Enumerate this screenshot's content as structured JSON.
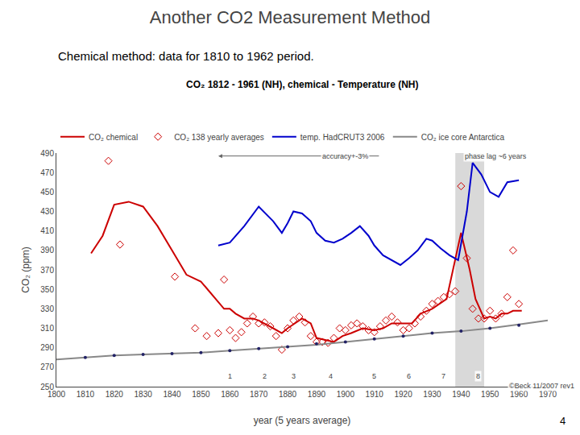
{
  "title": "Another CO2 Measurement Method",
  "subtitle": "Chemical method: data for 1810 to 1962 period.",
  "page_number": "4",
  "chart_data": {
    "type": "line",
    "title": "CO₂ 1812 - 1961 (NH), chemical - Temperature (NH)",
    "xlabel": "year (5 years average)",
    "ylabel": "CO₂ (ppm)",
    "xlim": [
      1800,
      1970
    ],
    "ylim": [
      250,
      490
    ],
    "xticks": [
      1800,
      1810,
      1820,
      1830,
      1840,
      1850,
      1860,
      1870,
      1880,
      1890,
      1900,
      1910,
      1920,
      1930,
      1940,
      1950,
      1960,
      1970
    ],
    "yticks": [
      250,
      270,
      290,
      310,
      330,
      350,
      370,
      390,
      410,
      430,
      450,
      470,
      490
    ],
    "grid": false,
    "legend": "top",
    "series": [
      {
        "name": "CO₂ chemical",
        "type": "line",
        "color": "#cc0000",
        "x": [
          1812,
          1816,
          1820,
          1825,
          1830,
          1835,
          1840,
          1845,
          1850,
          1855,
          1858,
          1860,
          1862,
          1865,
          1868,
          1870,
          1872,
          1875,
          1878,
          1880,
          1883,
          1885,
          1888,
          1890,
          1893,
          1896,
          1899,
          1902,
          1906,
          1910,
          1913,
          1916,
          1920,
          1923,
          1926,
          1930,
          1935,
          1940,
          1943,
          1945,
          1948,
          1950,
          1952,
          1954,
          1956,
          1958,
          1961
        ],
        "values": [
          387,
          405,
          437,
          440,
          435,
          415,
          390,
          365,
          358,
          340,
          330,
          330,
          325,
          320,
          320,
          318,
          315,
          310,
          305,
          310,
          316,
          320,
          315,
          300,
          298,
          296,
          302,
          305,
          310,
          308,
          310,
          315,
          315,
          315,
          325,
          330,
          340,
          408,
          370,
          340,
          320,
          322,
          320,
          325,
          325,
          328,
          328
        ]
      },
      {
        "name": "CO₂ 138 yearly averages",
        "type": "scatter",
        "marker": "diamond-open",
        "color": "#cc0000",
        "x": [
          1818,
          1822,
          1841,
          1848,
          1852,
          1856,
          1858,
          1860,
          1862,
          1864,
          1866,
          1868,
          1870,
          1872,
          1874,
          1876,
          1878,
          1880,
          1882,
          1884,
          1886,
          1888,
          1890,
          1892,
          1894,
          1896,
          1898,
          1900,
          1902,
          1904,
          1906,
          1908,
          1910,
          1912,
          1914,
          1916,
          1918,
          1920,
          1922,
          1924,
          1926,
          1928,
          1930,
          1932,
          1934,
          1936,
          1938,
          1940,
          1942,
          1944,
          1946,
          1948,
          1950,
          1952,
          1954,
          1956,
          1958,
          1960
        ],
        "values": [
          482,
          396,
          363,
          310,
          302,
          305,
          360,
          308,
          300,
          306,
          315,
          322,
          315,
          316,
          312,
          302,
          288,
          310,
          318,
          322,
          316,
          302,
          296,
          296,
          295,
          300,
          310,
          308,
          313,
          315,
          312,
          308,
          306,
          312,
          318,
          322,
          316,
          308,
          310,
          315,
          322,
          328,
          335,
          338,
          342,
          345,
          348,
          456,
          382,
          330,
          320,
          320,
          328,
          320,
          325,
          342,
          390,
          335
        ]
      },
      {
        "name": "temp. HadCRUT3 2006",
        "type": "line",
        "color": "#0000cc",
        "x": [
          1856,
          1860,
          1865,
          1870,
          1875,
          1878,
          1880,
          1882,
          1885,
          1888,
          1890,
          1893,
          1896,
          1899,
          1902,
          1905,
          1908,
          1910,
          1913,
          1916,
          1919,
          1922,
          1925,
          1928,
          1930,
          1933,
          1936,
          1939,
          1942,
          1944,
          1947,
          1950,
          1953,
          1956,
          1960
        ],
        "values": [
          395,
          398,
          415,
          435,
          420,
          408,
          418,
          430,
          428,
          420,
          408,
          400,
          398,
          402,
          408,
          415,
          405,
          395,
          385,
          380,
          375,
          382,
          390,
          402,
          400,
          392,
          385,
          380,
          430,
          480,
          468,
          450,
          445,
          460,
          462
        ]
      },
      {
        "name": "CO₂ ice core Antarctica",
        "type": "line",
        "color": "#888888",
        "x": [
          1800,
          1810,
          1820,
          1830,
          1840,
          1850,
          1860,
          1870,
          1880,
          1890,
          1900,
          1910,
          1920,
          1930,
          1940,
          1950,
          1960,
          1970
        ],
        "values": [
          278,
          280,
          282,
          283,
          284,
          285,
          287,
          289,
          291,
          293,
          296,
          299,
          302,
          305,
          307,
          310,
          314,
          318
        ]
      },
      {
        "type": "scatter",
        "marker": "circle",
        "color": "#222266",
        "x": [
          1810,
          1820,
          1830,
          1840,
          1850,
          1860,
          1870,
          1880,
          1890,
          1900,
          1910,
          1920,
          1930,
          1940,
          1950,
          1960
        ],
        "values": [
          280,
          282,
          283,
          284,
          285,
          287,
          289,
          291,
          294,
          296,
          299,
          302,
          305,
          307,
          310,
          313
        ]
      }
    ],
    "shade": {
      "x": [
        1938,
        1948
      ],
      "color": "#d0d0d0"
    },
    "arrow": {
      "from": [
        1912,
        487
      ],
      "to": [
        1856,
        487
      ]
    },
    "annotations": [
      {
        "text": "1",
        "x": 1860,
        "y": 261
      },
      {
        "text": "2",
        "x": 1872,
        "y": 261
      },
      {
        "text": "3",
        "x": 1882,
        "y": 261
      },
      {
        "text": "4",
        "x": 1895,
        "y": 261
      },
      {
        "text": "5",
        "x": 1910,
        "y": 261
      },
      {
        "text": "6",
        "x": 1922,
        "y": 261
      },
      {
        "text": "7",
        "x": 1934,
        "y": 261
      },
      {
        "text": "8",
        "x": 1946,
        "y": 261
      },
      {
        "text": "accuracy+-3%",
        "x": 1900,
        "y": 487
      },
      {
        "text": "phase lag ~6 years",
        "x": 1952,
        "y": 487
      },
      {
        "text": "©Beck 11/2007 rev1",
        "x": 1968,
        "y": 251
      }
    ]
  }
}
